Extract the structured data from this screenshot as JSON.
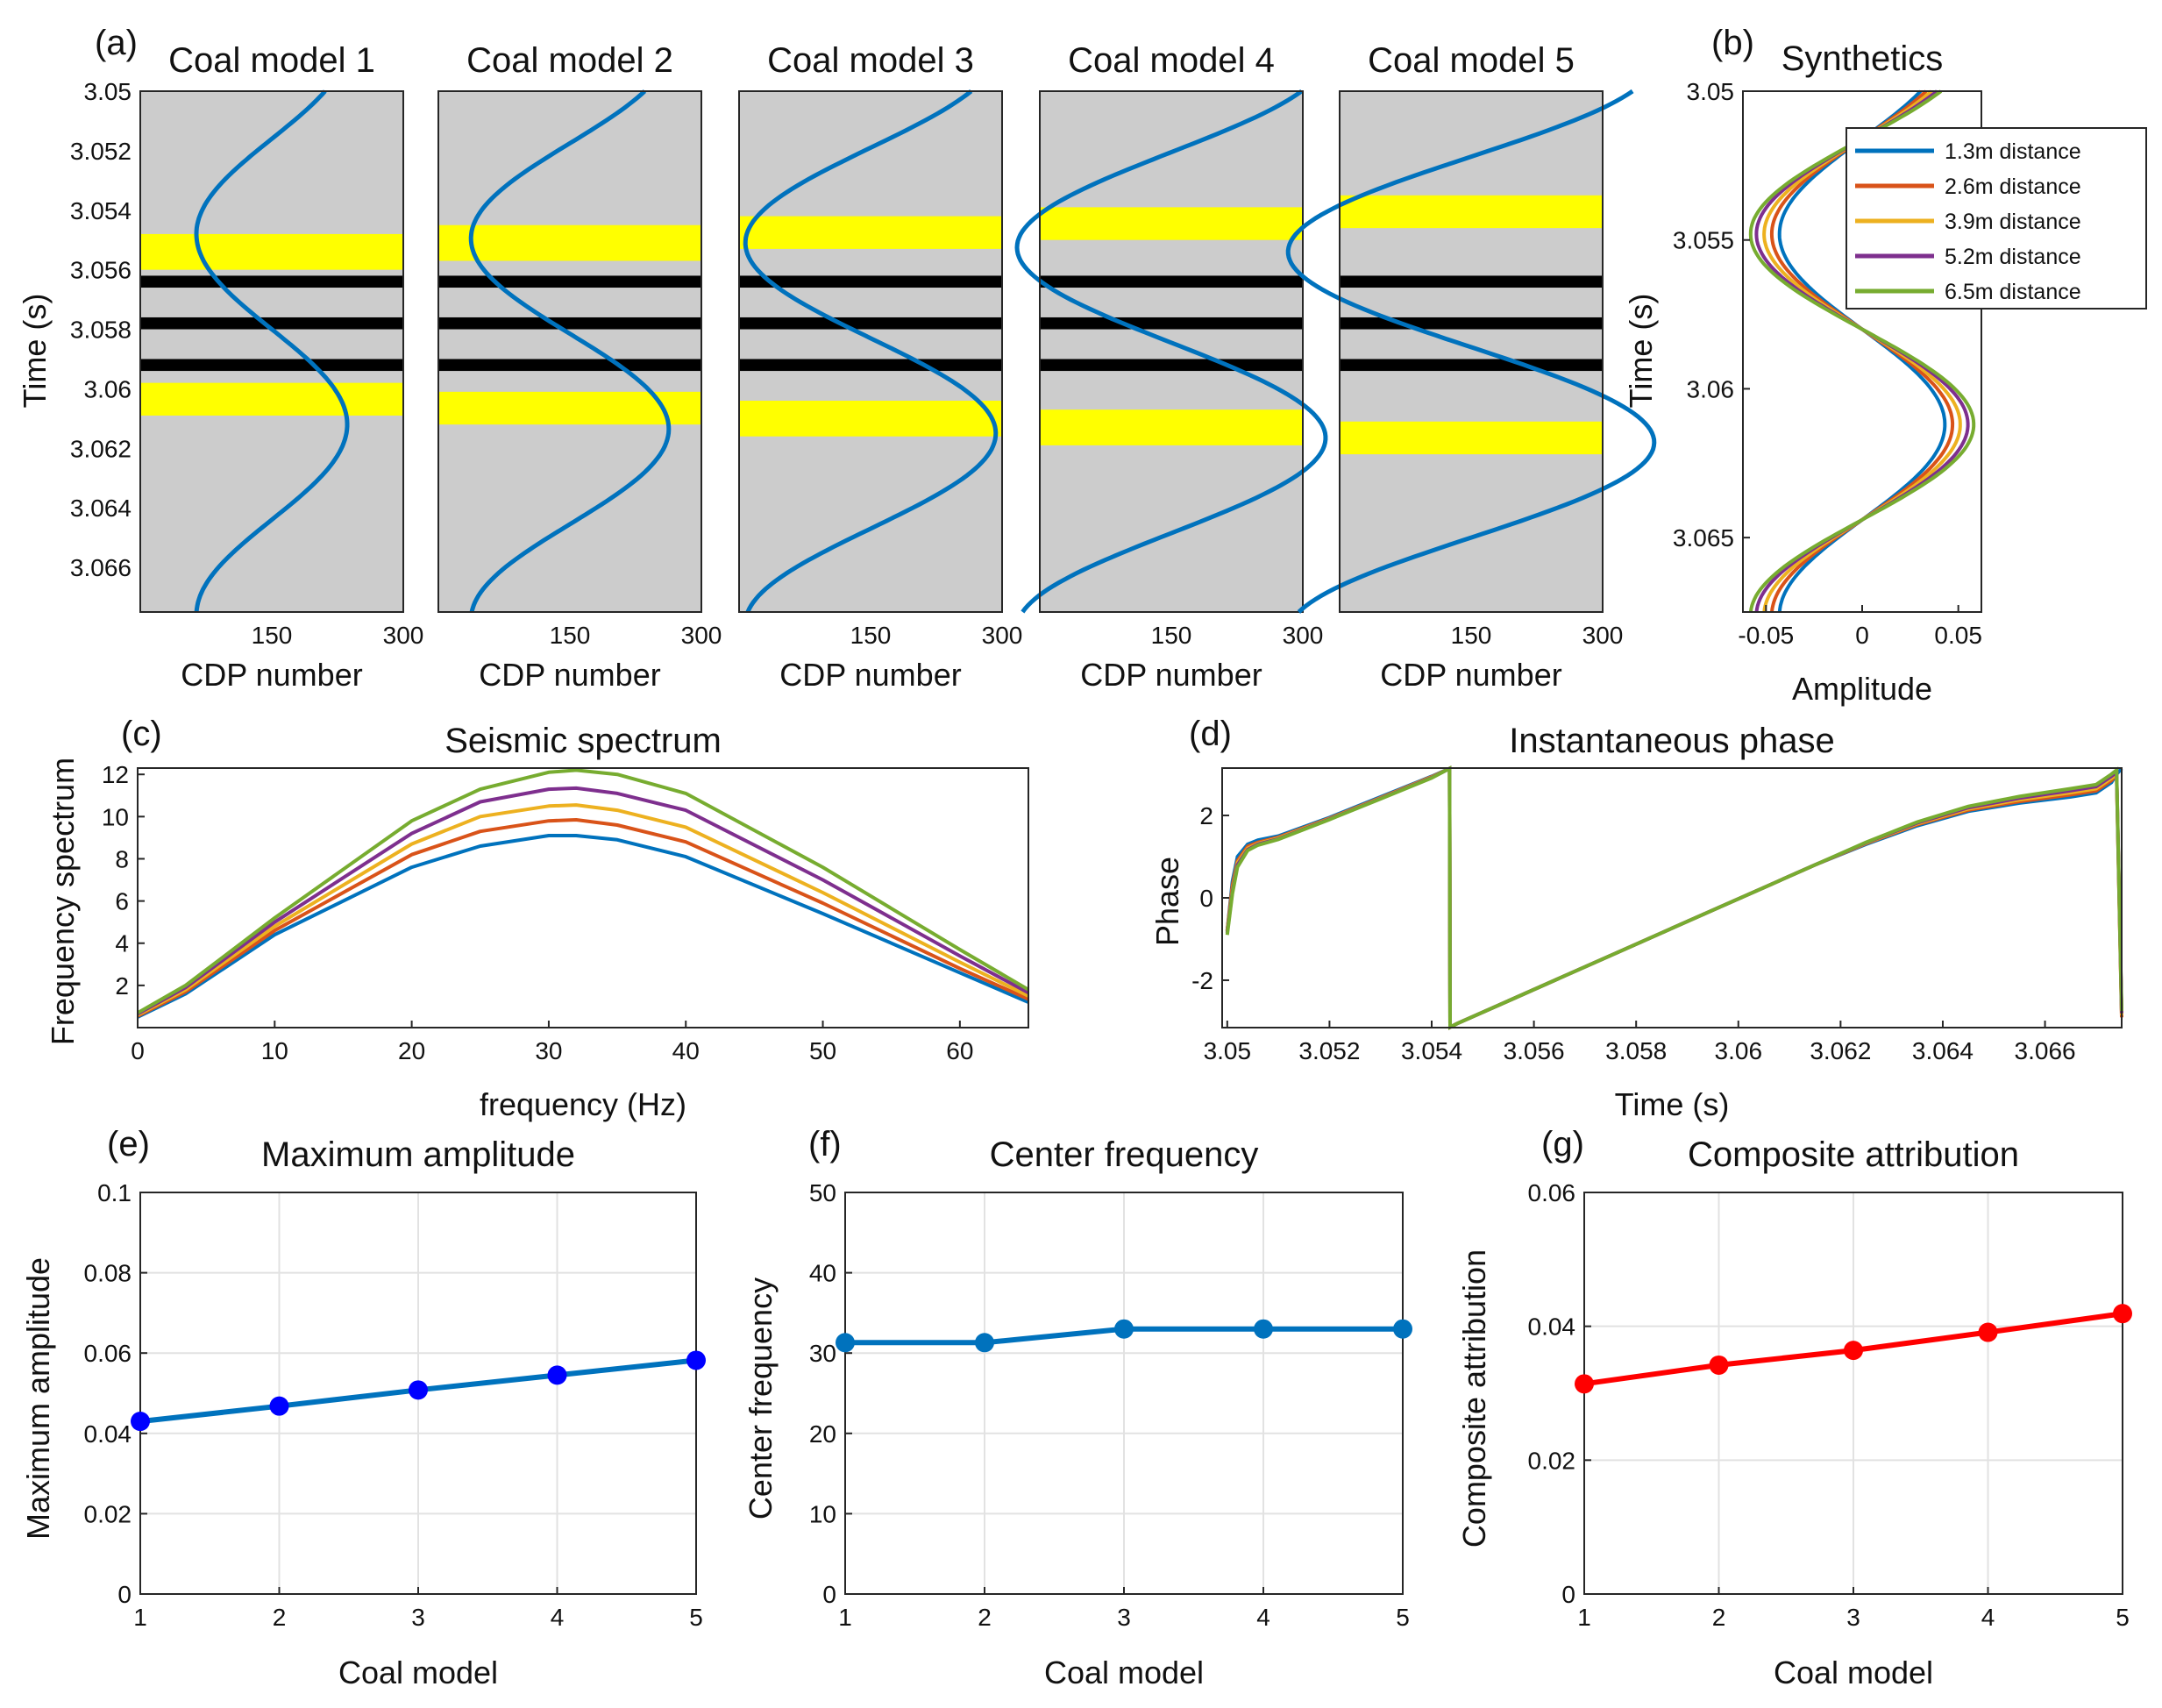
{
  "figure": {
    "panels": {
      "a": "(a)",
      "b": "(b)",
      "c": "(c)",
      "d": "(d)",
      "e": "(e)",
      "f": "(f)",
      "g": "(g)"
    }
  },
  "colors": {
    "blue": "#0072BD",
    "orange": "#D95319",
    "yellow": "#EDB120",
    "purple": "#7E2F8E",
    "green": "#77AC30",
    "gray": "#CCCCCC",
    "highlight": "#FFFF00",
    "black": "#000000",
    "dot_blue": "#0000FF",
    "red": "#FF0000"
  },
  "chart_data": [
    {
      "id": "a",
      "type": "line",
      "models": [
        {
          "title": "Coal model 1",
          "yellow_top": [
            3.0548,
            3.056
          ],
          "yellow_bottom": [
            3.0598,
            3.0609
          ]
        },
        {
          "title": "Coal model 2",
          "yellow_top": [
            3.0545,
            3.0557
          ],
          "yellow_bottom": [
            3.0601,
            3.0612
          ]
        },
        {
          "title": "Coal model 3",
          "yellow_top": [
            3.0542,
            3.0553
          ],
          "yellow_bottom": [
            3.0604,
            3.0616
          ]
        },
        {
          "title": "Coal model 4",
          "yellow_top": [
            3.0539,
            3.055
          ],
          "yellow_bottom": [
            3.0607,
            3.0619
          ]
        },
        {
          "title": "Coal model 5",
          "yellow_top": [
            3.0535,
            3.0546
          ],
          "yellow_bottom": [
            3.0611,
            3.0622
          ]
        }
      ],
      "black_layers": [
        [
          3.0562,
          3.0566
        ],
        [
          3.0576,
          3.058
        ],
        [
          3.059,
          3.0594
        ]
      ],
      "xlabel": "CDP number",
      "ylabel": "Time (s)",
      "xticks": [
        150,
        300
      ],
      "xlim": [
        0,
        300
      ],
      "ylim": [
        3.0675,
        3.05
      ],
      "yticks": [
        3.05,
        3.052,
        3.054,
        3.056,
        3.058,
        3.06,
        3.062,
        3.064,
        3.066
      ],
      "ytick_labels": [
        "3.05",
        "3.052",
        "3.054",
        "3.056",
        "3.058",
        "3.06",
        "3.062",
        "3.064",
        "3.066"
      ],
      "trace_amplitudes": [
        0.043,
        0.047,
        0.051,
        0.055,
        0.058
      ],
      "trace_baseline": 150,
      "trace_scale": 2000
    },
    {
      "id": "b",
      "type": "line",
      "title": "Synthetics",
      "xlabel": "Amplitude",
      "ylabel": "Time (s)",
      "xlim": [
        -0.062,
        0.062
      ],
      "ylim": [
        3.0675,
        3.05
      ],
      "xticks": [
        -0.05,
        0,
        0.05
      ],
      "xtick_labels": [
        "-0.05",
        "0",
        "0.05"
      ],
      "yticks": [
        3.05,
        3.055,
        3.06,
        3.065
      ],
      "ytick_labels": [
        "3.05",
        "3.055",
        "3.06",
        "3.065"
      ],
      "series": [
        {
          "name": "1.3m distance",
          "amplitude": 0.043
        },
        {
          "name": "2.6m distance",
          "amplitude": 0.047
        },
        {
          "name": "3.9m distance",
          "amplitude": 0.051
        },
        {
          "name": "5.2m distance",
          "amplitude": 0.055
        },
        {
          "name": "6.5m distance",
          "amplitude": 0.058
        }
      ],
      "legend": "top-right"
    },
    {
      "id": "c",
      "type": "line",
      "title": "Seismic spectrum",
      "xlabel": "frequency (Hz)",
      "ylabel": "Frequency spectrum",
      "xlim": [
        0,
        65
      ],
      "ylim": [
        0,
        12.3
      ],
      "xticks": [
        0,
        10,
        20,
        30,
        40,
        50,
        60
      ],
      "yticks": [
        2,
        4,
        6,
        8,
        10,
        12
      ],
      "x": [
        0,
        3.5,
        10,
        20,
        25,
        30,
        32,
        35,
        40,
        50,
        60,
        65
      ],
      "series": [
        {
          "name": "1.3m distance",
          "values": [
            0.5,
            1.6,
            4.4,
            7.6,
            8.6,
            9.1,
            9.1,
            8.9,
            8.1,
            5.4,
            2.6,
            1.2
          ]
        },
        {
          "name": "2.6m distance",
          "values": [
            0.55,
            1.7,
            4.6,
            8.2,
            9.3,
            9.8,
            9.85,
            9.6,
            8.8,
            5.9,
            2.8,
            1.35
          ]
        },
        {
          "name": "3.9m distance",
          "values": [
            0.6,
            1.8,
            4.8,
            8.7,
            10.0,
            10.5,
            10.55,
            10.3,
            9.5,
            6.4,
            3.1,
            1.5
          ]
        },
        {
          "name": "5.2m distance",
          "values": [
            0.65,
            1.9,
            5.0,
            9.2,
            10.7,
            11.3,
            11.35,
            11.1,
            10.3,
            7.0,
            3.4,
            1.65
          ]
        },
        {
          "name": "6.5m distance",
          "values": [
            0.7,
            2.0,
            5.2,
            9.8,
            11.3,
            12.1,
            12.2,
            12.0,
            11.1,
            7.6,
            3.7,
            1.8
          ]
        }
      ]
    },
    {
      "id": "d",
      "type": "line",
      "title": "Instantaneous phase",
      "xlabel": "Time (s)",
      "ylabel": "Phase",
      "xlim": [
        3.0499,
        3.0675
      ],
      "ylim": [
        -3.15,
        3.15
      ],
      "xticks": [
        3.05,
        3.052,
        3.054,
        3.056,
        3.058,
        3.06,
        3.062,
        3.064,
        3.066
      ],
      "xtick_labels": [
        "3.05",
        "3.052",
        "3.054",
        "3.056",
        "3.058",
        "3.06",
        "3.062",
        "3.064",
        "3.066"
      ],
      "yticks": [
        -2,
        0,
        2
      ],
      "series": [
        {
          "name": "1.3m distance",
          "t": [
            3.05,
            3.0501,
            3.0502,
            3.0504,
            3.0506,
            3.051,
            3.052,
            3.053,
            3.054,
            3.05435,
            3.05436,
            3.0545,
            3.0555,
            3.0565,
            3.0575,
            3.0585,
            3.0595,
            3.0605,
            3.0615,
            3.0625,
            3.0635,
            3.0645,
            3.0655,
            3.0665,
            3.067,
            3.0673,
            3.0674,
            3.0675
          ],
          "phase": [
            -0.8,
            0.4,
            1.0,
            1.3,
            1.4,
            1.5,
            1.95,
            2.45,
            2.95,
            3.14,
            -3.14,
            -3.05,
            -2.5,
            -1.95,
            -1.4,
            -0.85,
            -0.3,
            0.25,
            0.8,
            1.3,
            1.75,
            2.1,
            2.3,
            2.45,
            2.55,
            2.8,
            3.0,
            3.14
          ]
        },
        {
          "name": "2.6m distance",
          "t": [
            3.05,
            3.0501,
            3.0502,
            3.0504,
            3.0506,
            3.051,
            3.052,
            3.053,
            3.054,
            3.05435,
            3.05436,
            3.0545,
            3.0555,
            3.0565,
            3.0575,
            3.0585,
            3.0595,
            3.0605,
            3.0615,
            3.0625,
            3.0635,
            3.0645,
            3.0655,
            3.0665,
            3.067,
            3.0673,
            3.0674,
            3.0675
          ],
          "phase": [
            -0.8,
            0.3,
            0.9,
            1.25,
            1.35,
            1.47,
            1.93,
            2.43,
            2.94,
            3.14,
            -3.14,
            -3.05,
            -2.5,
            -1.95,
            -1.4,
            -0.85,
            -0.3,
            0.25,
            0.8,
            1.32,
            1.78,
            2.13,
            2.34,
            2.5,
            2.6,
            2.85,
            3.0,
            -2.9
          ]
        },
        {
          "name": "3.9m distance",
          "t": [
            3.05,
            3.0501,
            3.0502,
            3.0504,
            3.0506,
            3.051,
            3.052,
            3.053,
            3.054,
            3.05435,
            3.05436,
            3.0545,
            3.0555,
            3.0565,
            3.0575,
            3.0585,
            3.0595,
            3.0605,
            3.0615,
            3.0625,
            3.0635,
            3.0645,
            3.0655,
            3.0665,
            3.067,
            3.0673,
            3.0674,
            3.0675
          ],
          "phase": [
            -0.8,
            0.2,
            0.85,
            1.2,
            1.32,
            1.45,
            1.92,
            2.42,
            2.93,
            3.14,
            -3.14,
            -3.05,
            -2.5,
            -1.95,
            -1.4,
            -0.85,
            -0.3,
            0.25,
            0.8,
            1.33,
            1.8,
            2.16,
            2.38,
            2.55,
            2.65,
            2.9,
            3.0,
            -2.85
          ]
        },
        {
          "name": "5.2m distance",
          "t": [
            3.05,
            3.0501,
            3.0502,
            3.0504,
            3.0506,
            3.051,
            3.052,
            3.053,
            3.054,
            3.05435,
            3.05436,
            3.0545,
            3.0555,
            3.0565,
            3.0575,
            3.0585,
            3.0595,
            3.0605,
            3.0615,
            3.0625,
            3.0635,
            3.0645,
            3.0655,
            3.0665,
            3.067,
            3.0673,
            3.0674,
            3.0675
          ],
          "phase": [
            -0.85,
            0.15,
            0.8,
            1.17,
            1.3,
            1.43,
            1.91,
            2.41,
            2.92,
            3.14,
            -3.14,
            -3.05,
            -2.5,
            -1.95,
            -1.4,
            -0.85,
            -0.3,
            0.25,
            0.8,
            1.34,
            1.82,
            2.19,
            2.42,
            2.6,
            2.7,
            2.95,
            3.05,
            -2.8
          ]
        },
        {
          "name": "6.5m distance",
          "t": [
            3.05,
            3.0501,
            3.0502,
            3.0504,
            3.0506,
            3.051,
            3.052,
            3.053,
            3.054,
            3.05435,
            3.05436,
            3.0545,
            3.0555,
            3.0565,
            3.0575,
            3.0585,
            3.0595,
            3.0605,
            3.0615,
            3.0625,
            3.0635,
            3.0645,
            3.0655,
            3.0665,
            3.067,
            3.0673,
            3.0674,
            3.0675
          ],
          "phase": [
            -0.9,
            0.1,
            0.75,
            1.15,
            1.28,
            1.42,
            1.9,
            2.4,
            2.91,
            3.14,
            -3.14,
            -3.05,
            -2.5,
            -1.95,
            -1.4,
            -0.85,
            -0.3,
            0.25,
            0.8,
            1.35,
            1.84,
            2.22,
            2.46,
            2.65,
            2.75,
            3.0,
            3.1,
            -2.75
          ]
        }
      ]
    },
    {
      "id": "e",
      "type": "line",
      "title": "Maximum amplitude",
      "xlabel": "Coal model",
      "ylabel": "Maximum amplitude",
      "xlim": [
        1,
        5
      ],
      "ylim": [
        0,
        0.1
      ],
      "xticks": [
        1,
        2,
        3,
        4,
        5
      ],
      "yticks": [
        0,
        0.02,
        0.04,
        0.06,
        0.08,
        0.1
      ],
      "ytick_labels": [
        "0",
        "0.02",
        "0.04",
        "0.06",
        "0.08",
        "0.1"
      ],
      "x": [
        1,
        2,
        3,
        4,
        5
      ],
      "values": [
        0.043,
        0.0468,
        0.0508,
        0.0545,
        0.0582
      ]
    },
    {
      "id": "f",
      "type": "line",
      "title": "Center frequency",
      "xlabel": "Coal model",
      "ylabel": "Center frequency",
      "xlim": [
        1,
        5
      ],
      "ylim": [
        0,
        50
      ],
      "xticks": [
        1,
        2,
        3,
        4,
        5
      ],
      "yticks": [
        0,
        10,
        20,
        30,
        40,
        50
      ],
      "ytick_labels": [
        "0",
        "10",
        "20",
        "30",
        "40",
        "50"
      ],
      "x": [
        1,
        2,
        3,
        4,
        5
      ],
      "values": [
        31.3,
        31.3,
        33.0,
        33.0,
        33.0
      ]
    },
    {
      "id": "g",
      "type": "line",
      "title": "Composite attribution",
      "xlabel": "Coal model",
      "ylabel": "Composite attribution",
      "xlim": [
        1,
        5
      ],
      "ylim": [
        0,
        0.06
      ],
      "xticks": [
        1,
        2,
        3,
        4,
        5
      ],
      "yticks": [
        0,
        0.02,
        0.04,
        0.06
      ],
      "ytick_labels": [
        "0",
        "0.02",
        "0.04",
        "0.06"
      ],
      "x": [
        1,
        2,
        3,
        4,
        5
      ],
      "values": [
        0.0314,
        0.0342,
        0.0364,
        0.0391,
        0.0419
      ]
    }
  ]
}
